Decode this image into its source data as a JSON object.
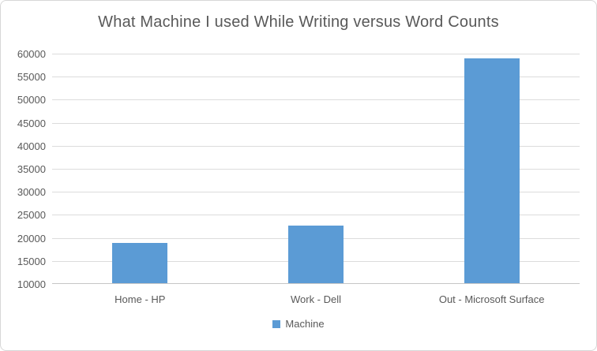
{
  "chart_data": {
    "type": "bar",
    "title": "What Machine I used While Writing versus Word Counts",
    "categories": [
      "Home - HP",
      "Work - Dell",
      "Out - Microsoft Surface"
    ],
    "series": [
      {
        "name": "Machine",
        "values": [
          18900,
          22600,
          58900
        ]
      }
    ],
    "xlabel": "",
    "ylabel": "",
    "ylim": [
      10000,
      60000
    ],
    "ytick_step": 5000,
    "ytick_labels": [
      "10000",
      "15000",
      "20000",
      "25000",
      "30000",
      "35000",
      "40000",
      "45000",
      "50000",
      "55000",
      "60000"
    ],
    "grid": true,
    "legend_position": "bottom",
    "bar_color": "#5b9bd5",
    "gridline_color": "#dcdcdc",
    "axis_line_color": "#c6c6c6",
    "text_color": "#595959",
    "background_color": "#ffffff",
    "border_color": "#d7d7d7"
  }
}
